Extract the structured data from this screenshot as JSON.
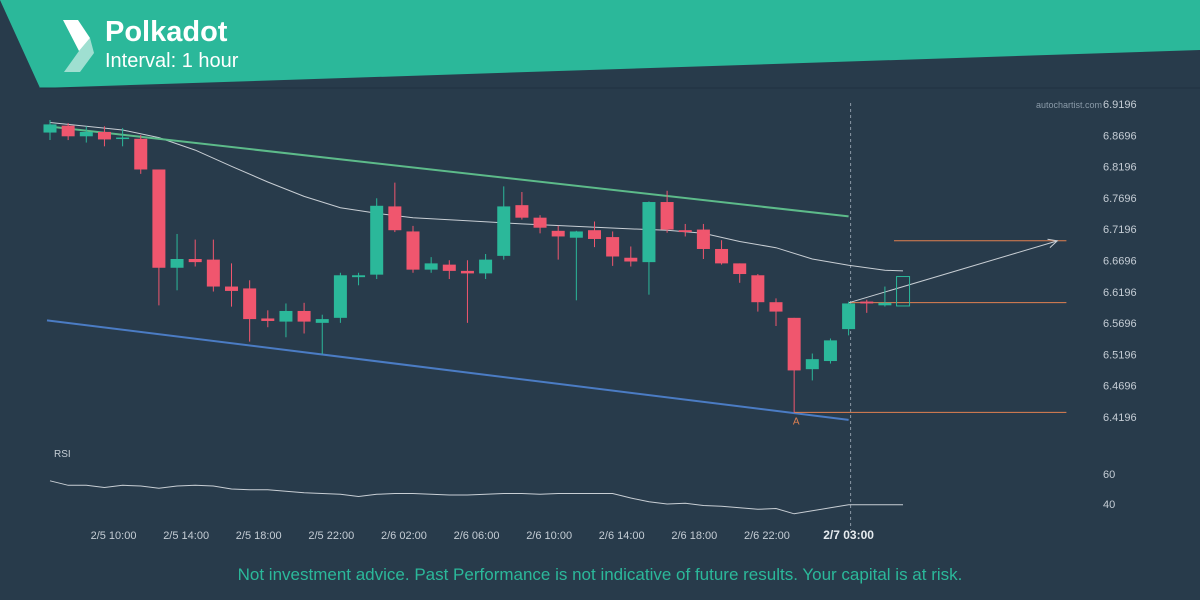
{
  "header": {
    "title": "Polkadot",
    "subtitle": "Interval: 1 hour"
  },
  "watermark": "autochartist.com",
  "disclaimer": "Not investment advice. Past Performance is not indicative of future results. Your capital is at risk.",
  "colors": {
    "background": "#283b4b",
    "banner": "#2bb89a",
    "bull": "#2bb89a",
    "bear": "#f0566e",
    "resistance": "#5dbb8a",
    "support": "#4b7cc4",
    "level": "#e08050",
    "ma": "#c8ced4"
  },
  "icons": {
    "logo": "autochartist-logo-icon"
  },
  "chart_data": {
    "type": "candlestick",
    "ylim": [
      6.3946,
      6.9446
    ],
    "y_ticks": [
      6.9196,
      6.8696,
      6.8196,
      6.7696,
      6.7196,
      6.6696,
      6.6196,
      6.5696,
      6.5196,
      6.4696,
      6.4196
    ],
    "x_ticks": [
      {
        "label": "2/5 10:00",
        "index": 3.5
      },
      {
        "label": "2/5 14:00",
        "index": 7.5
      },
      {
        "label": "2/5 18:00",
        "index": 11.5
      },
      {
        "label": "2/5 22:00",
        "index": 15.5
      },
      {
        "label": "2/6 02:00",
        "index": 19.5
      },
      {
        "label": "2/6 06:00",
        "index": 23.5
      },
      {
        "label": "2/6 10:00",
        "index": 27.5
      },
      {
        "label": "2/6 14:00",
        "index": 31.5
      },
      {
        "label": "2/6 18:00",
        "index": 35.5
      },
      {
        "label": "2/6 22:00",
        "index": 39.5
      },
      {
        "label": "2/7 03:00",
        "index": 44,
        "bold": true
      }
    ],
    "candles": [
      {
        "o": 6.874,
        "h": 6.894,
        "l": 6.862,
        "c": 6.887
      },
      {
        "o": 6.885,
        "h": 6.889,
        "l": 6.862,
        "c": 6.868
      },
      {
        "o": 6.868,
        "h": 6.884,
        "l": 6.858,
        "c": 6.875
      },
      {
        "o": 6.875,
        "h": 6.884,
        "l": 6.852,
        "c": 6.863
      },
      {
        "o": 6.864,
        "h": 6.881,
        "l": 6.852,
        "c": 6.866
      },
      {
        "o": 6.864,
        "h": 6.87,
        "l": 6.808,
        "c": 6.815
      },
      {
        "o": 6.815,
        "h": 6.815,
        "l": 6.598,
        "c": 6.658
      },
      {
        "o": 6.658,
        "h": 6.712,
        "l": 6.622,
        "c": 6.672
      },
      {
        "o": 6.672,
        "h": 6.703,
        "l": 6.66,
        "c": 6.667
      },
      {
        "o": 6.671,
        "h": 6.703,
        "l": 6.62,
        "c": 6.628
      },
      {
        "o": 6.628,
        "h": 6.665,
        "l": 6.596,
        "c": 6.621
      },
      {
        "o": 6.625,
        "h": 6.638,
        "l": 6.54,
        "c": 6.576
      },
      {
        "o": 6.577,
        "h": 6.59,
        "l": 6.563,
        "c": 6.573
      },
      {
        "o": 6.572,
        "h": 6.601,
        "l": 6.547,
        "c": 6.589
      },
      {
        "o": 6.589,
        "h": 6.602,
        "l": 6.553,
        "c": 6.572
      },
      {
        "o": 6.57,
        "h": 6.583,
        "l": 6.52,
        "c": 6.576
      },
      {
        "o": 6.578,
        "h": 6.65,
        "l": 6.57,
        "c": 6.646
      },
      {
        "o": 6.643,
        "h": 6.65,
        "l": 6.63,
        "c": 6.646
      },
      {
        "o": 6.647,
        "h": 6.769,
        "l": 6.64,
        "c": 6.757
      },
      {
        "o": 6.756,
        "h": 6.794,
        "l": 6.715,
        "c": 6.718
      },
      {
        "o": 6.716,
        "h": 6.725,
        "l": 6.65,
        "c": 6.655
      },
      {
        "o": 6.655,
        "h": 6.675,
        "l": 6.65,
        "c": 6.665
      },
      {
        "o": 6.663,
        "h": 6.67,
        "l": 6.64,
        "c": 6.653
      },
      {
        "o": 6.653,
        "h": 6.67,
        "l": 6.57,
        "c": 6.649
      },
      {
        "o": 6.649,
        "h": 6.68,
        "l": 6.64,
        "c": 6.671
      },
      {
        "o": 6.677,
        "h": 6.788,
        "l": 6.671,
        "c": 6.756
      },
      {
        "o": 6.758,
        "h": 6.779,
        "l": 6.735,
        "c": 6.738
      },
      {
        "o": 6.738,
        "h": 6.742,
        "l": 6.713,
        "c": 6.722
      },
      {
        "o": 6.717,
        "h": 6.725,
        "l": 6.671,
        "c": 6.708
      },
      {
        "o": 6.706,
        "h": 6.717,
        "l": 6.606,
        "c": 6.716
      },
      {
        "o": 6.718,
        "h": 6.732,
        "l": 6.691,
        "c": 6.704
      },
      {
        "o": 6.707,
        "h": 6.716,
        "l": 6.661,
        "c": 6.676
      },
      {
        "o": 6.674,
        "h": 6.692,
        "l": 6.66,
        "c": 6.668
      },
      {
        "o": 6.667,
        "h": 6.764,
        "l": 6.615,
        "c": 6.763
      },
      {
        "o": 6.763,
        "h": 6.781,
        "l": 6.714,
        "c": 6.719
      },
      {
        "o": 6.718,
        "h": 6.728,
        "l": 6.708,
        "c": 6.715
      },
      {
        "o": 6.719,
        "h": 6.728,
        "l": 6.672,
        "c": 6.688
      },
      {
        "o": 6.688,
        "h": 6.702,
        "l": 6.663,
        "c": 6.665
      },
      {
        "o": 6.665,
        "h": 6.665,
        "l": 6.634,
        "c": 6.648
      },
      {
        "o": 6.646,
        "h": 6.648,
        "l": 6.588,
        "c": 6.603
      },
      {
        "o": 6.603,
        "h": 6.609,
        "l": 6.565,
        "c": 6.588
      },
      {
        "o": 6.578,
        "h": 6.578,
        "l": 6.427,
        "c": 6.494
      },
      {
        "o": 6.496,
        "h": 6.521,
        "l": 6.478,
        "c": 6.512
      },
      {
        "o": 6.509,
        "h": 6.545,
        "l": 6.505,
        "c": 6.542
      },
      {
        "o": 6.56,
        "h": 6.604,
        "l": 6.55,
        "c": 6.601
      },
      {
        "o": 6.604,
        "h": 6.607,
        "l": 6.586,
        "c": 6.601
      },
      {
        "o": 6.598,
        "h": 6.628,
        "l": 6.596,
        "c": 6.602
      }
    ],
    "pending_candle": {
      "index": 47,
      "o": 6.597,
      "c": 6.644
    },
    "moving_average": [
      [
        0,
        6.89
      ],
      [
        4,
        6.878
      ],
      [
        6,
        6.866
      ],
      [
        8,
        6.846
      ],
      [
        10,
        6.82
      ],
      [
        12,
        6.795
      ],
      [
        14,
        6.772
      ],
      [
        16,
        6.754
      ],
      [
        18,
        6.745
      ],
      [
        20,
        6.738
      ],
      [
        23,
        6.733
      ],
      [
        26,
        6.728
      ],
      [
        29,
        6.724
      ],
      [
        32,
        6.72
      ],
      [
        34,
        6.718
      ],
      [
        36,
        6.713
      ],
      [
        38,
        6.7
      ],
      [
        40,
        6.69
      ],
      [
        42,
        6.672
      ],
      [
        44,
        6.662
      ],
      [
        46,
        6.654
      ],
      [
        47,
        6.653
      ]
    ],
    "resistance_line": [
      [
        0,
        6.884
      ],
      [
        44,
        6.74
      ]
    ],
    "support_line": [
      [
        0,
        6.574
      ],
      [
        44,
        6.415
      ]
    ],
    "levels": [
      {
        "value": 6.7011,
        "from": 46.5,
        "to": 56
      },
      {
        "value": 6.6024,
        "from": 44,
        "to": 56
      },
      {
        "value": 6.427,
        "from": 41,
        "to": 56
      }
    ],
    "forecast_arrow": [
      [
        44,
        6.602
      ],
      [
        55.5,
        6.701
      ]
    ],
    "marker": {
      "label": "A",
      "index": 41,
      "value": 6.427
    },
    "current_time_index": 44,
    "rsi": {
      "label": "RSI",
      "ticks": [
        60,
        40
      ],
      "ylim": [
        30,
        70
      ],
      "values": [
        55.5,
        52.5,
        52.5,
        51.0,
        52.5,
        52.0,
        50.5,
        52.0,
        52.5,
        52.0,
        50.0,
        49.5,
        49.5,
        48.5,
        47.5,
        47.0,
        46.5,
        45.0,
        46.5,
        47.0,
        47.0,
        46.5,
        46.0,
        46.0,
        46.5,
        47.0,
        47.0,
        46.5,
        47.0,
        47.0,
        47.0,
        47.0,
        44.0,
        41.5,
        40.0,
        40.5,
        39.0,
        38.5,
        37.5,
        36.5,
        37.0,
        33.5,
        35.5,
        37.5,
        39.5,
        39.5,
        39.5,
        39.5
      ]
    }
  }
}
